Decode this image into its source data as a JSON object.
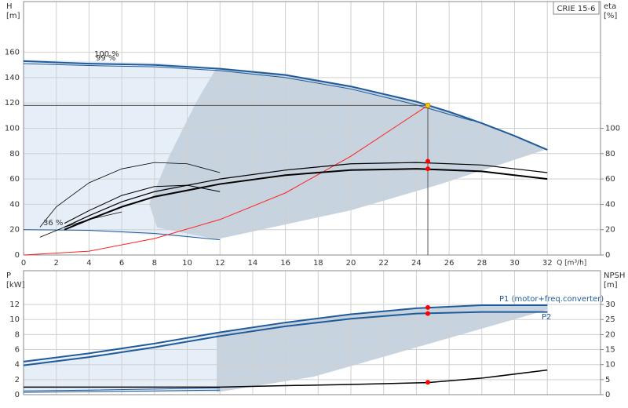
{
  "chart_data": [
    {
      "type": "line",
      "label_box": "CRIE 15-6",
      "ylabel": [
        "H",
        "[m]"
      ],
      "y2label": [
        "eta",
        "[%]"
      ],
      "xlabel": "Q [m³/h]",
      "xlim": [
        0,
        35.25
      ],
      "xticks": [
        0,
        2,
        4,
        6,
        8,
        10,
        12,
        14,
        16,
        18,
        20,
        22,
        24,
        26,
        28,
        30,
        32
      ],
      "ylim": [
        0,
        200
      ],
      "yticks": [
        0,
        20,
        40,
        60,
        80,
        100,
        120,
        140,
        160
      ],
      "y2lim": [
        0,
        200
      ],
      "y2ticks": [
        0,
        20,
        40,
        60,
        80,
        100
      ],
      "grid": true,
      "annotations": [
        "100 %",
        "99 %",
        "36 %"
      ],
      "series": [
        {
          "color": "#1f5a9a",
          "x": [
            0,
            4,
            8,
            12,
            16,
            20,
            24,
            26,
            28,
            30,
            32
          ],
          "values": [
            153,
            151,
            150,
            147,
            142,
            133,
            121,
            113,
            104,
            94,
            83
          ]
        },
        {
          "color": "#1f5a9a",
          "x": [
            0,
            4,
            8,
            12,
            16,
            20,
            24,
            26,
            27.4
          ],
          "values": [
            151,
            149.5,
            148.5,
            145.5,
            140,
            131,
            118.5,
            111,
            106
          ]
        },
        {
          "color": "#1f5a9a",
          "x": [
            0,
            4,
            8,
            12
          ],
          "values": [
            20,
            19.5,
            17,
            12
          ]
        },
        {
          "color": "#ff2020",
          "x": [
            0,
            4,
            8,
            12,
            16,
            20,
            24.7
          ],
          "values": [
            0,
            3,
            13,
            28,
            49,
            78,
            118
          ]
        },
        {
          "color": "#000000",
          "axis": "y2",
          "x": [
            2.5,
            4,
            6,
            8,
            12,
            16,
            20,
            24,
            28,
            32
          ],
          "values": [
            22,
            31,
            42,
            50,
            60,
            67,
            72,
            73,
            71,
            65
          ]
        },
        {
          "color": "#000000",
          "axis": "y2",
          "x": [
            2.5,
            4,
            6,
            8,
            12,
            16,
            20,
            24,
            28,
            32
          ],
          "values": [
            20,
            28,
            38,
            46,
            56,
            63,
            67,
            68,
            66,
            60
          ]
        },
        {
          "color": "#000000",
          "axis": "y2",
          "x": [
            1,
            2,
            4,
            6,
            8,
            10,
            12
          ],
          "values": [
            22,
            38,
            57,
            68,
            73,
            72,
            65
          ]
        },
        {
          "color": "#000000",
          "axis": "y2",
          "x": [
            2.5,
            4,
            6,
            8,
            10,
            12
          ],
          "values": [
            25,
            35,
            47,
            54,
            55,
            50
          ]
        },
        {
          "color": "#000000",
          "axis": "y2",
          "x": [
            1,
            2.5,
            4,
            6
          ],
          "values": [
            14,
            22,
            28,
            34
          ]
        }
      ],
      "points": [
        {
          "x": 24.7,
          "value": 118,
          "color": "#ffcc00"
        },
        {
          "x": 24.7,
          "value": 74,
          "color": "#ff0000",
          "axis": "y2"
        },
        {
          "x": 24.7,
          "value": 68,
          "color": "#ff0000",
          "axis": "y2"
        }
      ]
    },
    {
      "type": "line",
      "ylabel": [
        "P",
        "[kW]"
      ],
      "y2label": [
        "NPSH",
        "[m]"
      ],
      "xlim": [
        0,
        35.25
      ],
      "ylim": [
        0,
        16.5
      ],
      "yticks": [
        0,
        2,
        4,
        6,
        8,
        10,
        12
      ],
      "y2lim": [
        0,
        41.25
      ],
      "y2ticks": [
        0,
        5,
        10,
        15,
        20,
        25,
        30
      ],
      "grid": true,
      "annotations": [
        "P1 (motor+freq.converter)",
        "P2"
      ],
      "series": [
        {
          "color": "#1f5a9a",
          "x": [
            0,
            4,
            8,
            12,
            16,
            20,
            24,
            28,
            32
          ],
          "values": [
            4.4,
            5.5,
            6.8,
            8.3,
            9.6,
            10.7,
            11.5,
            11.9,
            11.9
          ]
        },
        {
          "color": "#1f5a9a",
          "x": [
            0,
            4,
            8,
            12,
            16,
            20,
            24,
            28,
            32
          ],
          "values": [
            3.9,
            5.0,
            6.3,
            7.8,
            9.1,
            10.1,
            10.8,
            11.0,
            11.0
          ]
        },
        {
          "color": "#1f5a9a",
          "x": [
            0,
            4,
            8,
            12
          ],
          "values": [
            0.5,
            0.6,
            0.75,
            0.9
          ]
        },
        {
          "color": "#1f5a9a",
          "x": [
            0,
            4,
            8,
            12
          ],
          "values": [
            0.3,
            0.4,
            0.5,
            0.6
          ]
        },
        {
          "color": "#000000",
          "axis": "y2",
          "x": [
            0,
            12,
            16,
            20,
            24.7,
            28,
            32
          ],
          "values": [
            2.5,
            2.5,
            3,
            3.4,
            4,
            5.5,
            8.2
          ]
        }
      ],
      "points": [
        {
          "x": 24.7,
          "value": 11.6,
          "color": "#ff0000"
        },
        {
          "x": 24.7,
          "value": 10.8,
          "color": "#ff0000"
        },
        {
          "x": 24.7,
          "value": 4.1,
          "color": "#ff0000",
          "axis": "y2"
        }
      ]
    }
  ]
}
